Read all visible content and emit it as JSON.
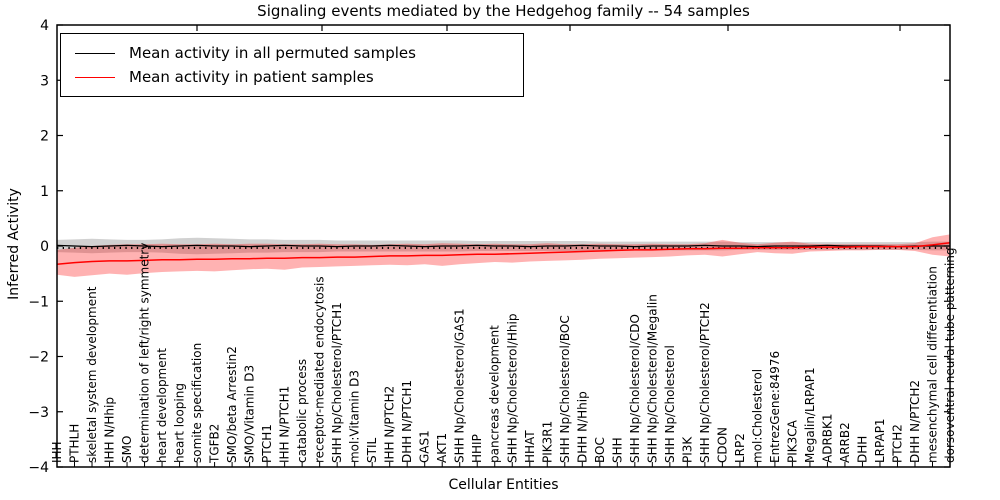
{
  "chart_data": {
    "type": "line",
    "title": "Signaling events mediated by the Hedgehog family -- 54 samples",
    "xlabel": "Cellular Entities",
    "ylabel": "Inferred Activity",
    "ylim": [
      -4,
      4
    ],
    "yticks": [
      4,
      3,
      2,
      1,
      0,
      -1,
      -2,
      -3,
      -4
    ],
    "grid": false,
    "legend": {
      "position": "upper left",
      "items": [
        {
          "label": "Mean activity in all permuted samples",
          "color": "#000000"
        },
        {
          "label": "Mean activity in patient samples",
          "color": "#ff0000"
        }
      ]
    },
    "categories": [
      "IHH",
      "PTHLH",
      "skeletal system development",
      "IHH N/Hhip",
      "SMO",
      "determination of left/right symmetry",
      "heart development",
      "heart looping",
      "somite specification",
      "TGFB2",
      "SMO/beta Arrestin2",
      "SMO/Vitamin D3",
      "PTCH1",
      "IHH N/PTCH1",
      "catabolic process",
      "receptor-mediated endocytosis",
      "SHH Np/Cholesterol/PTCH1",
      "mol:Vitamin D3",
      "STIL",
      "IHH N/PTCH2",
      "DHH N/PTCH1",
      "GAS1",
      "AKT1",
      "SHH Np/Cholesterol/GAS1",
      "HHIP",
      "pancreas development",
      "SHH Np/Cholesterol/Hhip",
      "HHAT",
      "PIK3R1",
      "SHH Np/Cholesterol/BOC",
      "DHH N/Hhip",
      "BOC",
      "SHH",
      "SHH Np/Cholesterol/CDO",
      "SHH Np/Cholesterol/Megalin",
      "SHH Np/Cholesterol",
      "PI3K",
      "SHH Np/Cholesterol/PTCH2",
      "CDON",
      "LRP2",
      "mol:Cholesterol",
      "EntrezGene:84976",
      "PIK3CA",
      "Megalin/LRPAP1",
      "ADRBK1",
      "ARRB2",
      "DHH",
      "LRPAP1",
      "PTCH2",
      "DHH N/PTCH2",
      "mesenchymal cell differentiation",
      "dorsoventral neural tube patterning"
    ],
    "series": [
      {
        "name": "Mean activity in all permuted samples",
        "color": "#000000",
        "values": [
          0.01,
          0.0,
          -0.01,
          0.0,
          0.01,
          0.0,
          -0.01,
          0.0,
          0.01,
          0.0,
          0.0,
          -0.01,
          0.0,
          0.01,
          0.0,
          0.0,
          -0.01,
          0.0,
          0.0,
          0.01,
          0.0,
          -0.01,
          0.0,
          0.0,
          0.01,
          0.0,
          0.0,
          -0.01,
          0.0,
          0.0,
          0.01,
          0.0,
          0.0,
          -0.01,
          0.0,
          0.0,
          0.0,
          0.01,
          0.0,
          0.0,
          -0.01,
          0.0,
          0.0,
          0.0,
          0.01,
          0.0,
          0.0,
          0.0,
          -0.01,
          0.0,
          0.0,
          0.0
        ]
      },
      {
        "name": "Mean activity in patient samples",
        "color": "#ff0000",
        "values": [
          -0.33,
          -0.3,
          -0.28,
          -0.27,
          -0.27,
          -0.26,
          -0.25,
          -0.25,
          -0.24,
          -0.24,
          -0.23,
          -0.23,
          -0.22,
          -0.22,
          -0.21,
          -0.21,
          -0.2,
          -0.2,
          -0.19,
          -0.18,
          -0.18,
          -0.17,
          -0.17,
          -0.16,
          -0.15,
          -0.15,
          -0.14,
          -0.13,
          -0.12,
          -0.11,
          -0.1,
          -0.09,
          -0.08,
          -0.07,
          -0.07,
          -0.06,
          -0.05,
          -0.05,
          -0.04,
          -0.04,
          -0.03,
          -0.03,
          -0.03,
          -0.02,
          -0.02,
          -0.02,
          -0.01,
          -0.01,
          -0.01,
          -0.01,
          0.02,
          0.06
        ]
      }
    ],
    "bands": [
      {
        "name": "permuted-std-band",
        "color": "#999999",
        "opacity": 0.45,
        "upper": [
          0.11,
          0.12,
          0.13,
          0.12,
          0.11,
          0.11,
          0.12,
          0.14,
          0.15,
          0.14,
          0.13,
          0.12,
          0.12,
          0.11,
          0.11,
          0.11,
          0.1,
          0.1,
          0.1,
          0.1,
          0.1,
          0.1,
          0.1,
          0.1,
          0.09,
          0.09,
          0.09,
          0.09,
          0.09,
          0.09,
          0.09,
          0.08,
          0.08,
          0.08,
          0.08,
          0.08,
          0.08,
          0.08,
          0.08,
          0.07,
          0.07,
          0.07,
          0.07,
          0.07,
          0.07,
          0.07,
          0.07,
          0.07,
          0.07,
          0.07,
          0.08,
          0.08
        ],
        "lower": [
          -0.11,
          -0.12,
          -0.13,
          -0.12,
          -0.11,
          -0.11,
          -0.12,
          -0.14,
          -0.15,
          -0.14,
          -0.13,
          -0.12,
          -0.12,
          -0.11,
          -0.11,
          -0.11,
          -0.1,
          -0.1,
          -0.1,
          -0.1,
          -0.1,
          -0.1,
          -0.1,
          -0.1,
          -0.09,
          -0.09,
          -0.09,
          -0.09,
          -0.09,
          -0.09,
          -0.09,
          -0.08,
          -0.08,
          -0.08,
          -0.08,
          -0.08,
          -0.08,
          -0.08,
          -0.08,
          -0.07,
          -0.07,
          -0.07,
          -0.07,
          -0.07,
          -0.07,
          -0.07,
          -0.07,
          -0.07,
          -0.07,
          -0.07,
          -0.08,
          -0.08
        ]
      },
      {
        "name": "patient-std-band",
        "color": "#ff0000",
        "opacity": 0.3,
        "upper": [
          -0.07,
          -0.03,
          0.0,
          0.02,
          0.03,
          0.03,
          0.04,
          0.03,
          0.03,
          0.04,
          0.03,
          0.04,
          0.04,
          0.03,
          0.03,
          0.04,
          0.03,
          0.03,
          0.02,
          0.03,
          0.04,
          0.03,
          0.05,
          0.04,
          0.03,
          0.04,
          0.03,
          0.03,
          0.05,
          0.03,
          0.03,
          0.04,
          0.03,
          0.03,
          0.04,
          0.03,
          0.03,
          0.05,
          0.11,
          0.06,
          0.03,
          0.06,
          0.08,
          0.04,
          0.03,
          0.03,
          0.03,
          0.03,
          0.03,
          0.05,
          0.16,
          0.21
        ],
        "lower": [
          -0.52,
          -0.56,
          -0.53,
          -0.5,
          -0.52,
          -0.49,
          -0.47,
          -0.46,
          -0.45,
          -0.46,
          -0.44,
          -0.42,
          -0.41,
          -0.43,
          -0.39,
          -0.38,
          -0.37,
          -0.36,
          -0.35,
          -0.34,
          -0.35,
          -0.33,
          -0.36,
          -0.33,
          -0.31,
          -0.29,
          -0.3,
          -0.28,
          -0.27,
          -0.26,
          -0.25,
          -0.23,
          -0.22,
          -0.21,
          -0.2,
          -0.19,
          -0.17,
          -0.16,
          -0.19,
          -0.15,
          -0.11,
          -0.13,
          -0.14,
          -0.1,
          -0.09,
          -0.08,
          -0.08,
          -0.07,
          -0.07,
          -0.09,
          -0.16,
          -0.19
        ]
      }
    ],
    "reference_line": {
      "y": -0.035,
      "style": "dotted",
      "color": "#000000"
    }
  }
}
